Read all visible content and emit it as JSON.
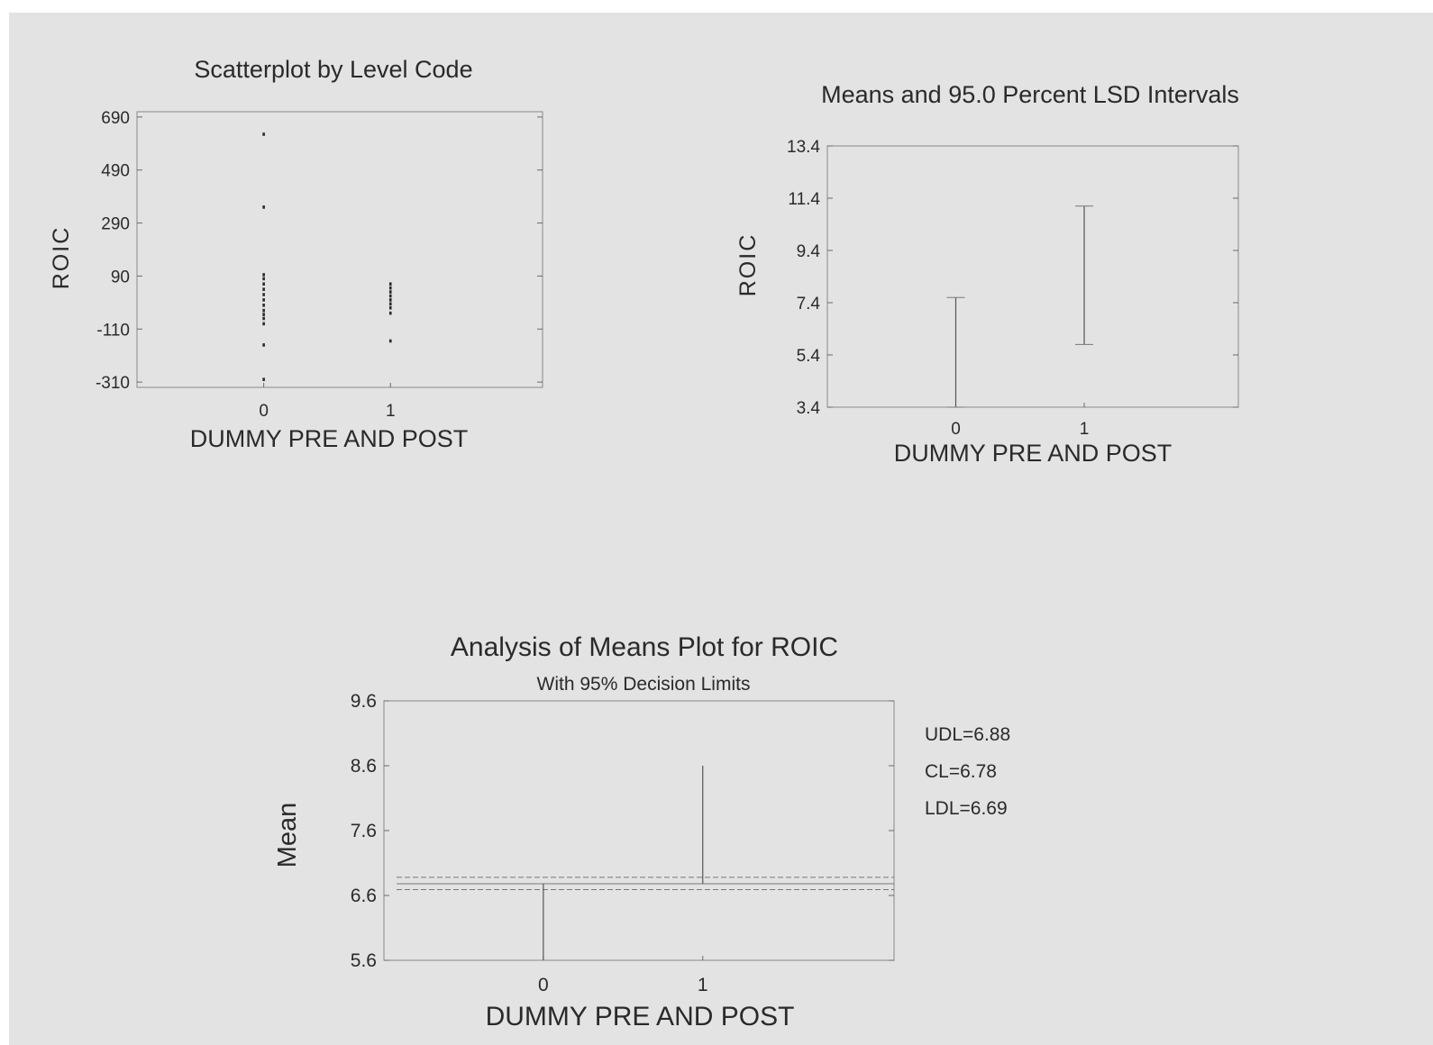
{
  "colors": {
    "background": "#e3e3e3",
    "ink": "#2a2a2a",
    "frame": "#8a8a8a"
  },
  "chart_data": [
    {
      "id": "scatter",
      "type": "scatter",
      "title": "Scatterplot by Level Code",
      "xlabel": "DUMMY PRE AND POST",
      "ylabel": "ROIC",
      "categories": [
        "0",
        "1"
      ],
      "xlim": [
        -1,
        2.2
      ],
      "ylim": [
        -330,
        710
      ],
      "yticks": [
        690,
        490,
        290,
        90,
        -110,
        -310
      ],
      "yticklabels": [
        "690",
        "490",
        "290",
        "90",
        "-110",
        "-310"
      ],
      "points": [
        {
          "x": 0,
          "y": 625
        },
        {
          "x": 0,
          "y": 350
        },
        {
          "x": 0,
          "y": 95
        },
        {
          "x": 0,
          "y": 80
        },
        {
          "x": 0,
          "y": 60
        },
        {
          "x": 0,
          "y": 40
        },
        {
          "x": 0,
          "y": 20
        },
        {
          "x": 0,
          "y": 0
        },
        {
          "x": 0,
          "y": -20
        },
        {
          "x": 0,
          "y": -40
        },
        {
          "x": 0,
          "y": -55
        },
        {
          "x": 0,
          "y": -70
        },
        {
          "x": 0,
          "y": -90
        },
        {
          "x": 0,
          "y": -170
        },
        {
          "x": 0,
          "y": -300
        },
        {
          "x": 1,
          "y": 60
        },
        {
          "x": 1,
          "y": 45
        },
        {
          "x": 1,
          "y": 30
        },
        {
          "x": 1,
          "y": 15
        },
        {
          "x": 1,
          "y": 0
        },
        {
          "x": 1,
          "y": -15
        },
        {
          "x": 1,
          "y": -30
        },
        {
          "x": 1,
          "y": -50
        },
        {
          "x": 1,
          "y": -155
        }
      ],
      "grid": false
    },
    {
      "id": "lsd",
      "type": "line",
      "title": "Means and 95.0 Percent LSD Intervals",
      "xlabel": "DUMMY PRE AND POST",
      "ylabel": "ROIC",
      "categories": [
        "0",
        "1"
      ],
      "xlim": [
        -1,
        2.2
      ],
      "ylim": [
        3.4,
        13.4
      ],
      "yticks": [
        13.4,
        11.4,
        9.4,
        7.4,
        5.4,
        3.4
      ],
      "yticklabels": [
        "13.4",
        "11.4",
        "9.4",
        "7.4",
        "5.4",
        "3.4"
      ],
      "intervals": [
        {
          "x": 0,
          "low": 3.4,
          "high": 7.6
        },
        {
          "x": 1,
          "low": 5.8,
          "high": 11.1
        }
      ],
      "grid": false
    },
    {
      "id": "anom",
      "type": "line",
      "title": "Analysis of Means Plot for ROIC",
      "subtitle": "With 95% Decision Limits",
      "xlabel": "DUMMY PRE AND POST",
      "ylabel": "Mean",
      "categories": [
        "0",
        "1"
      ],
      "xlim": [
        -1,
        2.2
      ],
      "ylim": [
        5.6,
        9.6
      ],
      "yticks": [
        9.6,
        8.6,
        7.6,
        6.6,
        5.6
      ],
      "yticklabels": [
        "9.6",
        "8.6",
        "7.6",
        "6.6",
        "5.6"
      ],
      "limits": [
        {
          "label": "UDL=6.88",
          "value": 6.88
        },
        {
          "label": "CL=6.78",
          "value": 6.78
        },
        {
          "label": "LDL=6.69",
          "value": 6.69
        }
      ],
      "means": [
        {
          "x": 0,
          "value": 5.6
        },
        {
          "x": 1,
          "value": 8.6
        }
      ],
      "grid": false
    }
  ]
}
